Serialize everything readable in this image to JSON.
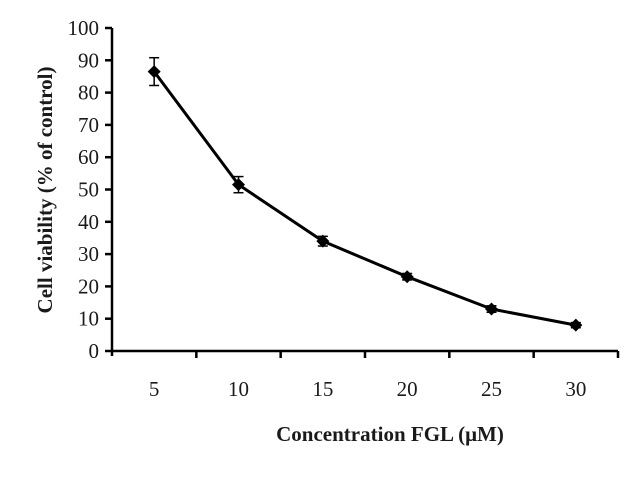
{
  "chart_data": {
    "type": "line",
    "title": "",
    "xlabel": "Concentration FGL (μM)",
    "ylabel": "Cell viability  (% of control)",
    "categories": [
      "5",
      "10",
      "15",
      "20",
      "25",
      "30"
    ],
    "x": [
      5,
      10,
      15,
      20,
      25,
      30
    ],
    "series": [
      {
        "name": "FGL",
        "values": [
          86.5,
          51.5,
          34,
          23,
          13,
          8
        ],
        "error": [
          4.3,
          2.5,
          1.5,
          1.0,
          1.0,
          0.8
        ],
        "marker": "diamond",
        "color": "#000000"
      }
    ],
    "ylim": [
      0,
      100
    ],
    "yticks": [
      0,
      10,
      20,
      30,
      40,
      50,
      60,
      70,
      80,
      90,
      100
    ],
    "grid": false,
    "legend": "none"
  },
  "colors": {
    "axis": "#000000",
    "line": "#000000",
    "background": "#ffffff"
  }
}
